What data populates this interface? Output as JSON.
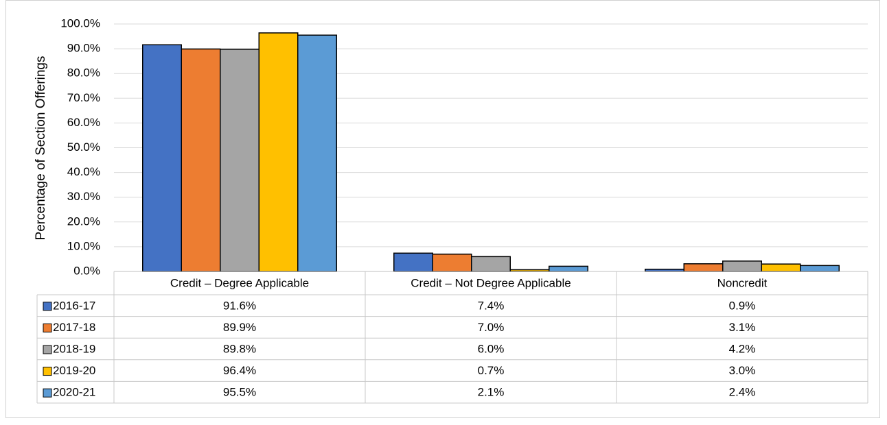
{
  "chart_data": {
    "type": "bar",
    "title": "",
    "xlabel": "",
    "ylabel": "Percentage of Section Offerings",
    "ylim": [
      0,
      100
    ],
    "yticks": [
      "0.0%",
      "10.0%",
      "20.0%",
      "30.0%",
      "40.0%",
      "50.0%",
      "60.0%",
      "70.0%",
      "80.0%",
      "90.0%",
      "100.0%"
    ],
    "grid": true,
    "legend": "data-table",
    "categories": [
      "Credit – Degree Applicable",
      "Credit – Not Degree Applicable",
      "Noncredit"
    ],
    "series": [
      {
        "name": "2016-17",
        "color": "#4472C4",
        "values": [
          91.6,
          7.4,
          0.9
        ],
        "labels": [
          "91.6%",
          "7.4%",
          "0.9%"
        ]
      },
      {
        "name": "2017-18",
        "color": "#ED7D31",
        "values": [
          89.9,
          7.0,
          3.1
        ],
        "labels": [
          "89.9%",
          "7.0%",
          "3.1%"
        ]
      },
      {
        "name": "2018-19",
        "color": "#A5A5A5",
        "values": [
          89.8,
          6.0,
          4.2
        ],
        "labels": [
          "89.8%",
          "6.0%",
          "4.2%"
        ]
      },
      {
        "name": "2019-20",
        "color": "#FFC000",
        "values": [
          96.4,
          0.7,
          3.0
        ],
        "labels": [
          "96.4%",
          "0.7%",
          "3.0%"
        ]
      },
      {
        "name": "2020-21",
        "color": "#5B9BD5",
        "values": [
          95.5,
          2.1,
          2.4
        ],
        "labels": [
          "95.5%",
          "2.1%",
          "2.4%"
        ]
      }
    ]
  }
}
